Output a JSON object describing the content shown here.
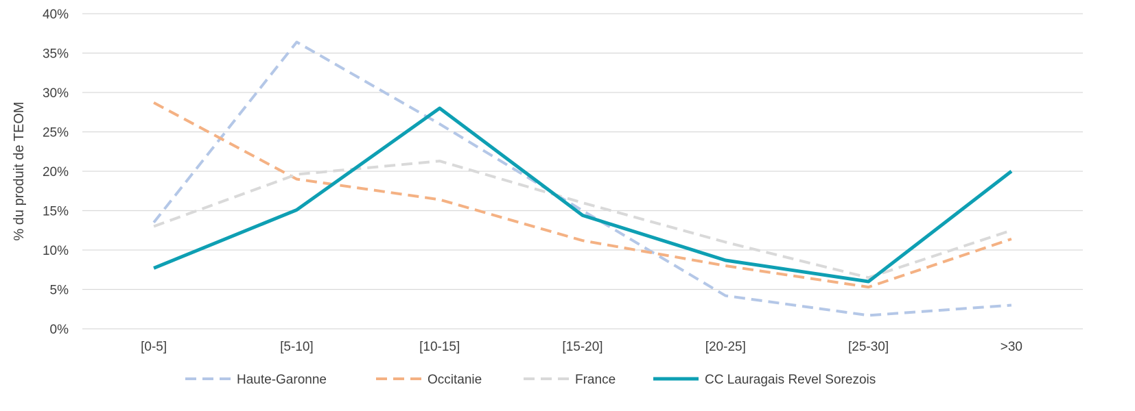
{
  "chart_data": {
    "type": "line",
    "title": "",
    "xlabel": "",
    "ylabel": "% du produit de TEOM",
    "categories": [
      "[0-5]",
      "[5-10]",
      "[10-15]",
      "[15-20]",
      "[20-25]",
      "[25-30]",
      ">30"
    ],
    "ylim": [
      0,
      40
    ],
    "yticks": [
      "0%",
      "5%",
      "10%",
      "15%",
      "20%",
      "25%",
      "30%",
      "35%",
      "40%"
    ],
    "grid": "horizontal",
    "legend_position": "bottom",
    "series": [
      {
        "name": "Haute-Garonne",
        "values": [
          13.5,
          36.4,
          26,
          15,
          4.2,
          1.7,
          3
        ],
        "color": "#b4c7e7",
        "style": "dashed"
      },
      {
        "name": "Occitanie",
        "values": [
          28.7,
          19,
          16.4,
          11.2,
          8,
          5.3,
          11.4
        ],
        "color": "#f4b183",
        "style": "dashed"
      },
      {
        "name": "France",
        "values": [
          13,
          19.6,
          21.3,
          16,
          11,
          6.5,
          12.5
        ],
        "color": "#d9d9d9",
        "style": "dashed"
      },
      {
        "name": "CC Lauragais Revel Sorezois",
        "values": [
          7.7,
          15.1,
          28,
          14.4,
          8.7,
          6,
          20
        ],
        "color": "#0e9fb3",
        "style": "solid"
      }
    ]
  }
}
